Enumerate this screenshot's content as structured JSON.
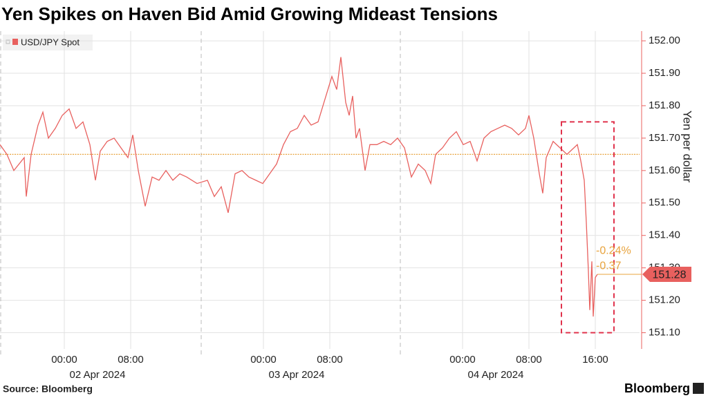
{
  "chart_data": {
    "type": "line",
    "title": "Yen Spikes on Haven Bid Amid Growing Mideast Tensions",
    "y_axis_label": "Yen per dollar",
    "source": "Source: Bloomberg",
    "brand": "Bloomberg",
    "x": [
      "2024-04-01T16:15",
      "2024-04-01T17:05",
      "2024-04-01T17:55",
      "2024-04-01T19:10",
      "2024-04-01T19:25",
      "2024-04-01T20:00",
      "2024-04-01T20:50",
      "2024-04-01T21:25",
      "2024-04-01T22:05",
      "2024-04-01T22:55",
      "2024-04-01T23:45",
      "2024-04-02T00:35",
      "2024-04-02T01:25",
      "2024-04-02T02:15",
      "2024-04-02T03:05",
      "2024-04-02T03:45",
      "2024-04-02T04:20",
      "2024-04-02T05:10",
      "2024-04-02T06:00",
      "2024-04-02T06:50",
      "2024-04-02T07:40",
      "2024-04-02T08:15",
      "2024-04-02T08:55",
      "2024-04-02T09:45",
      "2024-04-02T10:35",
      "2024-04-02T11:25",
      "2024-04-02T12:15",
      "2024-04-02T13:05",
      "2024-04-02T13:55",
      "2024-04-02T14:45",
      "2024-04-02T16:00",
      "2024-04-02T17:15",
      "2024-04-02T18:05",
      "2024-04-02T18:55",
      "2024-04-02T19:45",
      "2024-04-02T20:35",
      "2024-04-02T21:25",
      "2024-04-02T22:15",
      "2024-04-02T23:05",
      "2024-04-02T23:55",
      "2024-04-03T00:45",
      "2024-04-03T01:35",
      "2024-04-03T02:25",
      "2024-04-03T03:15",
      "2024-04-03T04:05",
      "2024-04-03T04:55",
      "2024-04-03T05:45",
      "2024-04-03T06:35",
      "2024-04-03T07:25",
      "2024-04-03T08:15",
      "2024-04-03T08:50",
      "2024-04-03T09:20",
      "2024-04-03T09:55",
      "2024-04-03T10:20",
      "2024-04-03T10:45",
      "2024-04-03T11:10",
      "2024-04-03T11:35",
      "2024-04-03T12:15",
      "2024-04-03T12:50",
      "2024-04-03T13:40",
      "2024-04-03T14:30",
      "2024-04-03T15:20",
      "2024-04-03T16:10",
      "2024-04-03T17:00",
      "2024-04-03T17:50",
      "2024-04-03T18:40",
      "2024-04-03T19:30",
      "2024-04-03T20:10",
      "2024-04-03T20:45",
      "2024-04-03T21:35",
      "2024-04-03T22:25",
      "2024-04-03T23:15",
      "2024-04-04T00:05",
      "2024-04-04T00:55",
      "2024-04-04T01:45",
      "2024-04-04T02:35",
      "2024-04-04T03:25",
      "2024-04-04T04:15",
      "2024-04-04T05:05",
      "2024-04-04T05:55",
      "2024-04-04T06:45",
      "2024-04-04T07:35",
      "2024-04-04T08:00",
      "2024-04-04T08:35",
      "2024-04-04T09:15",
      "2024-04-04T09:40",
      "2024-04-04T10:05",
      "2024-04-04T10:55",
      "2024-04-04T11:45",
      "2024-04-04T12:35",
      "2024-04-04T13:25",
      "2024-04-04T13:50",
      "2024-04-04T14:15",
      "2024-04-04T14:40",
      "2024-04-04T14:55",
      "2024-04-04T15:10",
      "2024-04-04T15:20",
      "2024-04-04T15:35",
      "2024-04-04T15:45",
      "2024-04-04T16:00",
      "2024-04-04T16:15"
    ],
    "series": [
      {
        "name": "USD/JPY Spot",
        "color": "#e8605e",
        "values": [
          151.68,
          151.65,
          151.6,
          151.64,
          151.52,
          151.65,
          151.74,
          151.78,
          151.7,
          151.73,
          151.77,
          151.79,
          151.73,
          151.75,
          151.68,
          151.57,
          151.66,
          151.69,
          151.7,
          151.67,
          151.64,
          151.71,
          151.6,
          151.49,
          151.58,
          151.57,
          151.6,
          151.57,
          151.59,
          151.58,
          151.56,
          151.57,
          151.52,
          151.55,
          151.47,
          151.59,
          151.6,
          151.58,
          151.57,
          151.56,
          151.59,
          151.62,
          151.68,
          151.72,
          151.73,
          151.77,
          151.74,
          151.75,
          151.82,
          151.89,
          151.85,
          151.95,
          151.81,
          151.77,
          151.83,
          151.7,
          151.73,
          151.6,
          151.68,
          151.68,
          151.69,
          151.68,
          151.7,
          151.67,
          151.58,
          151.62,
          151.6,
          151.56,
          151.65,
          151.67,
          151.7,
          151.72,
          151.68,
          151.69,
          151.63,
          151.7,
          151.72,
          151.73,
          151.74,
          151.73,
          151.71,
          151.73,
          151.77,
          151.7,
          151.59,
          151.53,
          151.64,
          151.69,
          151.67,
          151.65,
          151.67,
          151.68,
          151.63,
          151.57,
          151.44,
          151.29,
          151.17,
          151.32,
          151.15,
          151.27,
          151.28
        ]
      }
    ],
    "last_value": 151.28,
    "reference_line": 151.65,
    "reference_color": "#e8a33d",
    "change": {
      "value": -0.37,
      "label": "-0.37"
    },
    "change_pct": {
      "value": -0.24,
      "label": "-0.24%"
    },
    "highlight_box": {
      "x": [
        "2024-04-04T11:55",
        "2024-04-04T18:15"
      ],
      "y": [
        151.1,
        151.75
      ]
    },
    "session_breaks": [
      "2024-04-02T16:30",
      "2024-04-03T16:30"
    ],
    "xlim": [
      "2024-04-01T16:15",
      "2024-04-04T21:20"
    ],
    "xticks": [
      {
        "value": "2024-04-02T00:00",
        "label": "00:00"
      },
      {
        "value": "2024-04-02T08:00",
        "label": "08:00"
      },
      {
        "value": "2024-04-03T00:00",
        "label": "00:00"
      },
      {
        "value": "2024-04-03T08:00",
        "label": "08:00"
      },
      {
        "value": "2024-04-04T00:00",
        "label": "00:00"
      },
      {
        "value": "2024-04-04T08:00",
        "label": "08:00"
      },
      {
        "value": "2024-04-04T16:00",
        "label": "16:00"
      }
    ],
    "date_labels": [
      {
        "value": "2024-04-02T04:00",
        "label": "02 Apr 2024"
      },
      {
        "value": "2024-04-03T04:00",
        "label": "03 Apr 2024"
      },
      {
        "value": "2024-04-04T04:00",
        "label": "04 Apr 2024"
      }
    ],
    "ylim": [
      151.05,
      152.03
    ],
    "yticks": [
      {
        "value": 151.1,
        "label": "151.10"
      },
      {
        "value": 151.2,
        "label": "151.20"
      },
      {
        "value": 151.3,
        "label": "151.30"
      },
      {
        "value": 151.4,
        "label": "151.40"
      },
      {
        "value": 151.5,
        "label": "151.50"
      },
      {
        "value": 151.6,
        "label": "151.60"
      },
      {
        "value": 151.7,
        "label": "151.70"
      },
      {
        "value": 151.8,
        "label": "151.80"
      },
      {
        "value": 151.9,
        "label": "151.90"
      },
      {
        "value": 152.0,
        "label": "152.00"
      }
    ],
    "grid": true
  }
}
